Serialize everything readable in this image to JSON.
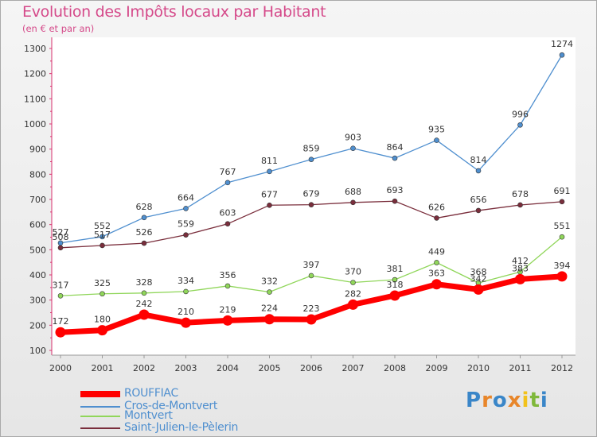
{
  "title": "Evolution des Impôts locaux par Habitant",
  "subtitle": "(en € et par an)",
  "logo": {
    "letters": [
      "P",
      "r",
      "o",
      "x",
      "i",
      "t",
      "i"
    ],
    "colors": [
      "#3a86c8",
      "#e8862a",
      "#3a86c8",
      "#e8862a",
      "#f2c21b",
      "#7fb83a",
      "#3a86c8"
    ]
  },
  "chart_data": {
    "type": "line",
    "x": [
      "2000",
      "2001",
      "2002",
      "2003",
      "2004",
      "2005",
      "2006",
      "2007",
      "2008",
      "2009",
      "2010",
      "2011",
      "2012"
    ],
    "ylim": [
      100,
      1300
    ],
    "yticks": [
      100,
      200,
      300,
      400,
      500,
      600,
      700,
      800,
      900,
      1000,
      1100,
      1200,
      1300
    ],
    "grid": false,
    "legend_position": "bottom-left",
    "series": [
      {
        "name": "ROUFFIAC",
        "color": "#ff0000",
        "values": [
          172,
          180,
          242,
          210,
          219,
          224,
          223,
          282,
          318,
          363,
          342,
          383,
          394
        ]
      },
      {
        "name": "Cros-de-Montvert",
        "color": "#4f8fcf",
        "values": [
          527,
          552,
          628,
          664,
          767,
          811,
          859,
          903,
          864,
          935,
          814,
          996,
          1274
        ]
      },
      {
        "name": "Montvert",
        "color": "#90d65a",
        "values": [
          317,
          325,
          328,
          334,
          356,
          332,
          397,
          370,
          381,
          449,
          368,
          412,
          551
        ]
      },
      {
        "name": "Saint-Julien-le-Pèlerin",
        "color": "#7a2e3c",
        "values": [
          508,
          517,
          526,
          559,
          603,
          677,
          679,
          688,
          693,
          626,
          656,
          678,
          691
        ]
      }
    ]
  }
}
